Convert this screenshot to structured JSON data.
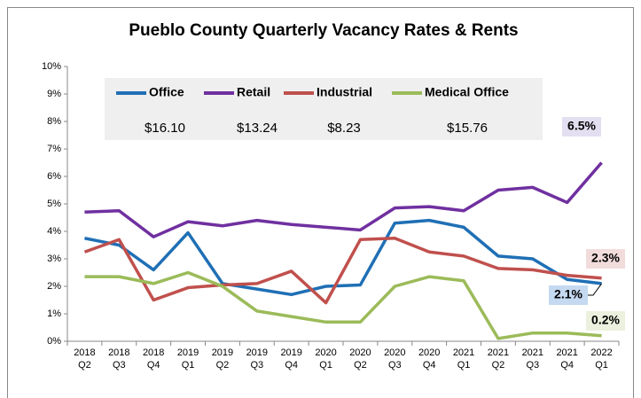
{
  "chart_data": {
    "type": "line",
    "title": "Pueblo County Quarterly Vacancy Rates & Rents",
    "categories": [
      [
        "2018",
        "Q2"
      ],
      [
        "2018",
        "Q3"
      ],
      [
        "2018",
        "Q4"
      ],
      [
        "2019",
        "Q1"
      ],
      [
        "2019",
        "Q2"
      ],
      [
        "2019",
        "Q3"
      ],
      [
        "2019",
        "Q4"
      ],
      [
        "2020",
        "Q1"
      ],
      [
        "2020",
        "Q2"
      ],
      [
        "2020",
        "Q3"
      ],
      [
        "2020",
        "Q4"
      ],
      [
        "2021",
        "Q1"
      ],
      [
        "2021",
        "Q2"
      ],
      [
        "2021",
        "Q3"
      ],
      [
        "2021",
        "Q4"
      ],
      [
        "2022",
        "Q1"
      ]
    ],
    "series": [
      {
        "name": "Office",
        "color": "#1f6fb5",
        "rent": "$16.10",
        "label_bg": "#c5d9f1",
        "values": [
          3.75,
          3.5,
          2.6,
          3.95,
          2.1,
          1.9,
          1.7,
          2.0,
          2.05,
          4.3,
          4.4,
          4.15,
          3.1,
          3.0,
          2.25,
          2.1
        ],
        "value_labels": [
          null,
          null,
          null,
          null,
          null,
          null,
          null,
          null,
          null,
          null,
          null,
          null,
          null,
          null,
          null,
          "2.1%"
        ]
      },
      {
        "name": "Retail",
        "color": "#7030a0",
        "rent": "$13.24",
        "label_bg": "#e4dff0",
        "values": [
          4.7,
          4.75,
          3.8,
          4.35,
          4.2,
          4.4,
          4.25,
          4.15,
          4.05,
          4.85,
          4.9,
          4.75,
          5.5,
          5.6,
          5.05,
          6.5
        ],
        "value_labels": [
          null,
          null,
          null,
          null,
          null,
          null,
          null,
          null,
          null,
          null,
          null,
          null,
          null,
          null,
          null,
          "6.5%"
        ]
      },
      {
        "name": "Industrial",
        "color": "#c0504d",
        "rent": "$8.23",
        "label_bg": "#f2dcdb",
        "values": [
          3.25,
          3.7,
          1.5,
          1.95,
          2.05,
          2.1,
          2.55,
          1.4,
          3.7,
          3.75,
          3.25,
          3.1,
          2.65,
          2.6,
          2.4,
          2.3
        ],
        "value_labels": [
          null,
          null,
          null,
          null,
          null,
          null,
          null,
          null,
          null,
          null,
          null,
          null,
          null,
          null,
          null,
          "2.3%"
        ]
      },
      {
        "name": "Medical Office",
        "color": "#9bbb59",
        "rent": "$15.76",
        "label_bg": "#ebf1de",
        "values": [
          2.35,
          2.35,
          2.1,
          2.5,
          2.0,
          1.1,
          0.9,
          0.7,
          0.7,
          2.0,
          2.35,
          2.2,
          0.1,
          0.3,
          0.3,
          0.2
        ],
        "value_labels": [
          null,
          null,
          null,
          null,
          null,
          null,
          null,
          null,
          null,
          null,
          null,
          null,
          null,
          null,
          null,
          "0.2%"
        ]
      }
    ],
    "ylim": [
      0,
      10
    ],
    "yticks": [
      {
        "value": 0,
        "label": "0%"
      },
      {
        "value": 1,
        "label": "1%"
      },
      {
        "value": 2,
        "label": "2%"
      },
      {
        "value": 3,
        "label": "3%"
      },
      {
        "value": 4,
        "label": "4%"
      },
      {
        "value": 5,
        "label": "5%"
      },
      {
        "value": 6,
        "label": "6%"
      },
      {
        "value": 7,
        "label": "7%"
      },
      {
        "value": 8,
        "label": "8%"
      },
      {
        "value": 9,
        "label": "9%"
      },
      {
        "value": 10,
        "label": "10%"
      }
    ],
    "grid": false
  }
}
